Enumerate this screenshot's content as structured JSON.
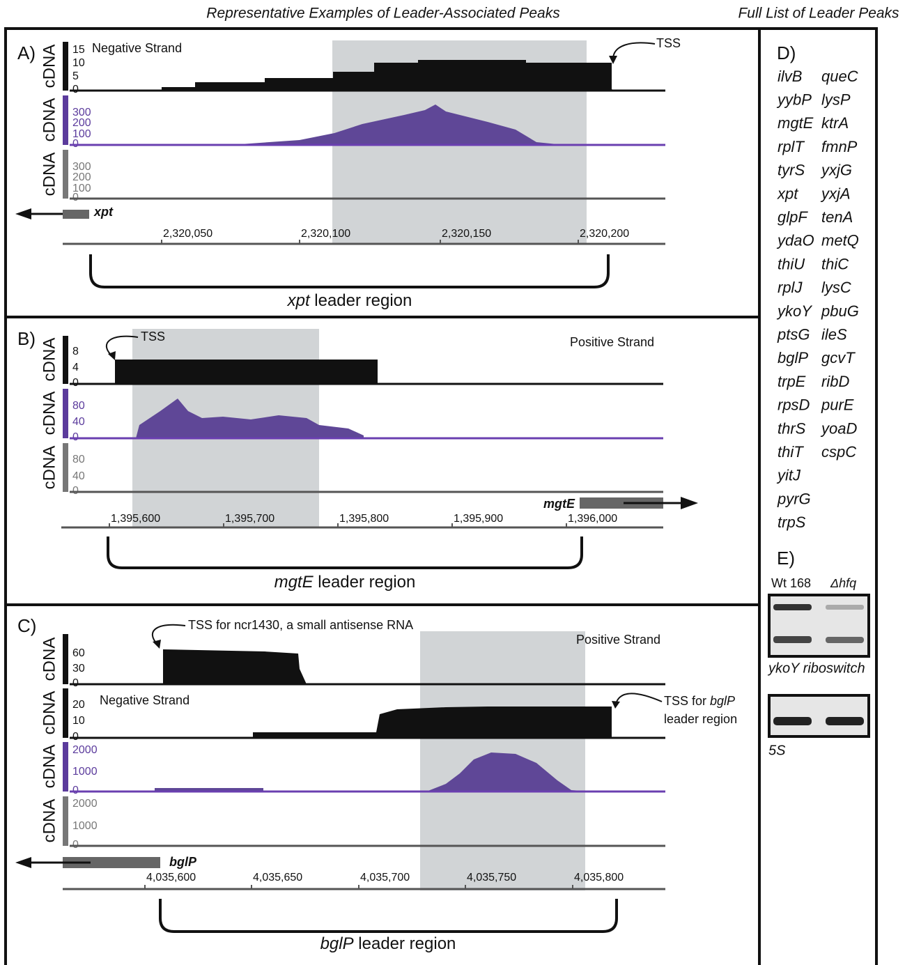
{
  "header": {
    "left": "Representative Examples of Leader-Associated Peaks",
    "right": "Full List of Leader Peaks"
  },
  "panels": [
    {
      "label": "A)",
      "strand": "Negative Strand",
      "tss": "TSS",
      "track_label": "cDNA",
      "ticks": [
        [
          "15",
          "10",
          "5",
          "0"
        ],
        [
          "300",
          "200",
          "100",
          "0"
        ],
        [
          "300",
          "200",
          "100",
          "0"
        ]
      ],
      "gene": "xpt",
      "coords": [
        "2,320,050",
        "2,320,100",
        "2,320,150",
        "2,320,200"
      ],
      "region_gene": "xpt",
      "region_text": "leader region"
    },
    {
      "label": "B)",
      "strand": "Positive Strand",
      "tss": "TSS",
      "track_label": "cDNA",
      "ticks": [
        [
          "8",
          "4",
          "0"
        ],
        [
          "80",
          "40",
          "0"
        ],
        [
          "80",
          "40",
          "0"
        ]
      ],
      "gene": "mgtE",
      "coords": [
        "1,395,600",
        "1,395,700",
        "1,395,800",
        "1,395,900",
        "1,396,000"
      ],
      "region_gene": "mgtE",
      "region_text": "leader region"
    },
    {
      "label": "C)",
      "strand_top": "Positive Strand",
      "strand": "Negative Strand",
      "tss_small": "TSS for ncr1430, a small antisense RNA",
      "tss_leader": [
        "TSS for ",
        "bglP",
        "leader region"
      ],
      "track_label": "cDNA",
      "ticks": [
        [
          "60",
          "30",
          "0"
        ],
        [
          "20",
          "10",
          "0"
        ],
        [
          "2000",
          "1000",
          "0"
        ],
        [
          "2000",
          "1000",
          "0"
        ]
      ],
      "gene": "bglP",
      "coords": [
        "4,035,600",
        "4,035,650",
        "4,035,700",
        "4,035,750",
        "4,035,800"
      ],
      "region_gene": "bglP",
      "region_text": "leader region"
    }
  ],
  "list": {
    "label": "D)",
    "columns": [
      [
        "ilvB",
        "yybP",
        "mgtE",
        "rplT",
        "tyrS",
        "xpt",
        "glpF",
        "ydaO",
        "thiU",
        "rplJ",
        "ykoY",
        "ptsG",
        "bglP",
        "trpE",
        "rpsD",
        "thrS",
        "thiT",
        "yitJ",
        "pyrG",
        "trpS"
      ],
      [
        "queC",
        "lysP",
        "ktrA",
        "fmnP",
        "yxjG",
        "yxjA",
        "tenA",
        "metQ",
        "thiC",
        "lysC",
        "pbuG",
        "ileS",
        "gcvT",
        "ribD",
        "purE",
        "yoaD",
        "cspC"
      ]
    ]
  },
  "blot": {
    "label": "E)",
    "lanes": [
      "Wt 168",
      "Δhfq"
    ],
    "caption_top": "ykoY riboswitch",
    "caption_bottom": "5S"
  }
}
